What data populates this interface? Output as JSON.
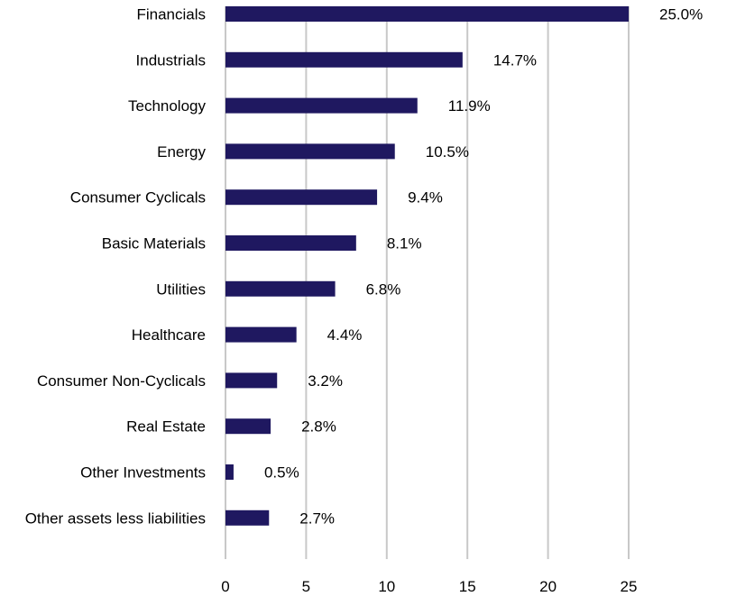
{
  "chart_data": {
    "type": "bar",
    "orientation": "horizontal",
    "categories": [
      "Financials",
      "Industrials",
      "Technology",
      "Energy",
      "Consumer Cyclicals",
      "Basic Materials",
      "Utilities",
      "Healthcare",
      "Consumer Non-Cyclicals",
      "Real Estate",
      "Other Investments",
      "Other assets less liabilities"
    ],
    "values": [
      25.0,
      14.7,
      11.9,
      10.5,
      9.4,
      8.1,
      6.8,
      4.4,
      3.2,
      2.8,
      0.5,
      2.7
    ],
    "data_labels": [
      "25.0%",
      "14.7%",
      "11.9%",
      "10.5%",
      "9.4%",
      "8.1%",
      "6.8%",
      "4.4%",
      "3.2%",
      "2.8%",
      "0.5%",
      "2.7%"
    ],
    "x_ticks": [
      "0",
      "5",
      "10",
      "15",
      "20",
      "25"
    ],
    "xlim": [
      0,
      25
    ],
    "title": "",
    "xlabel": "",
    "ylabel": "",
    "grid": "vertical",
    "legend": "none",
    "colors": {
      "bar": "#1f1860",
      "grid": "#c8c8c8"
    }
  }
}
